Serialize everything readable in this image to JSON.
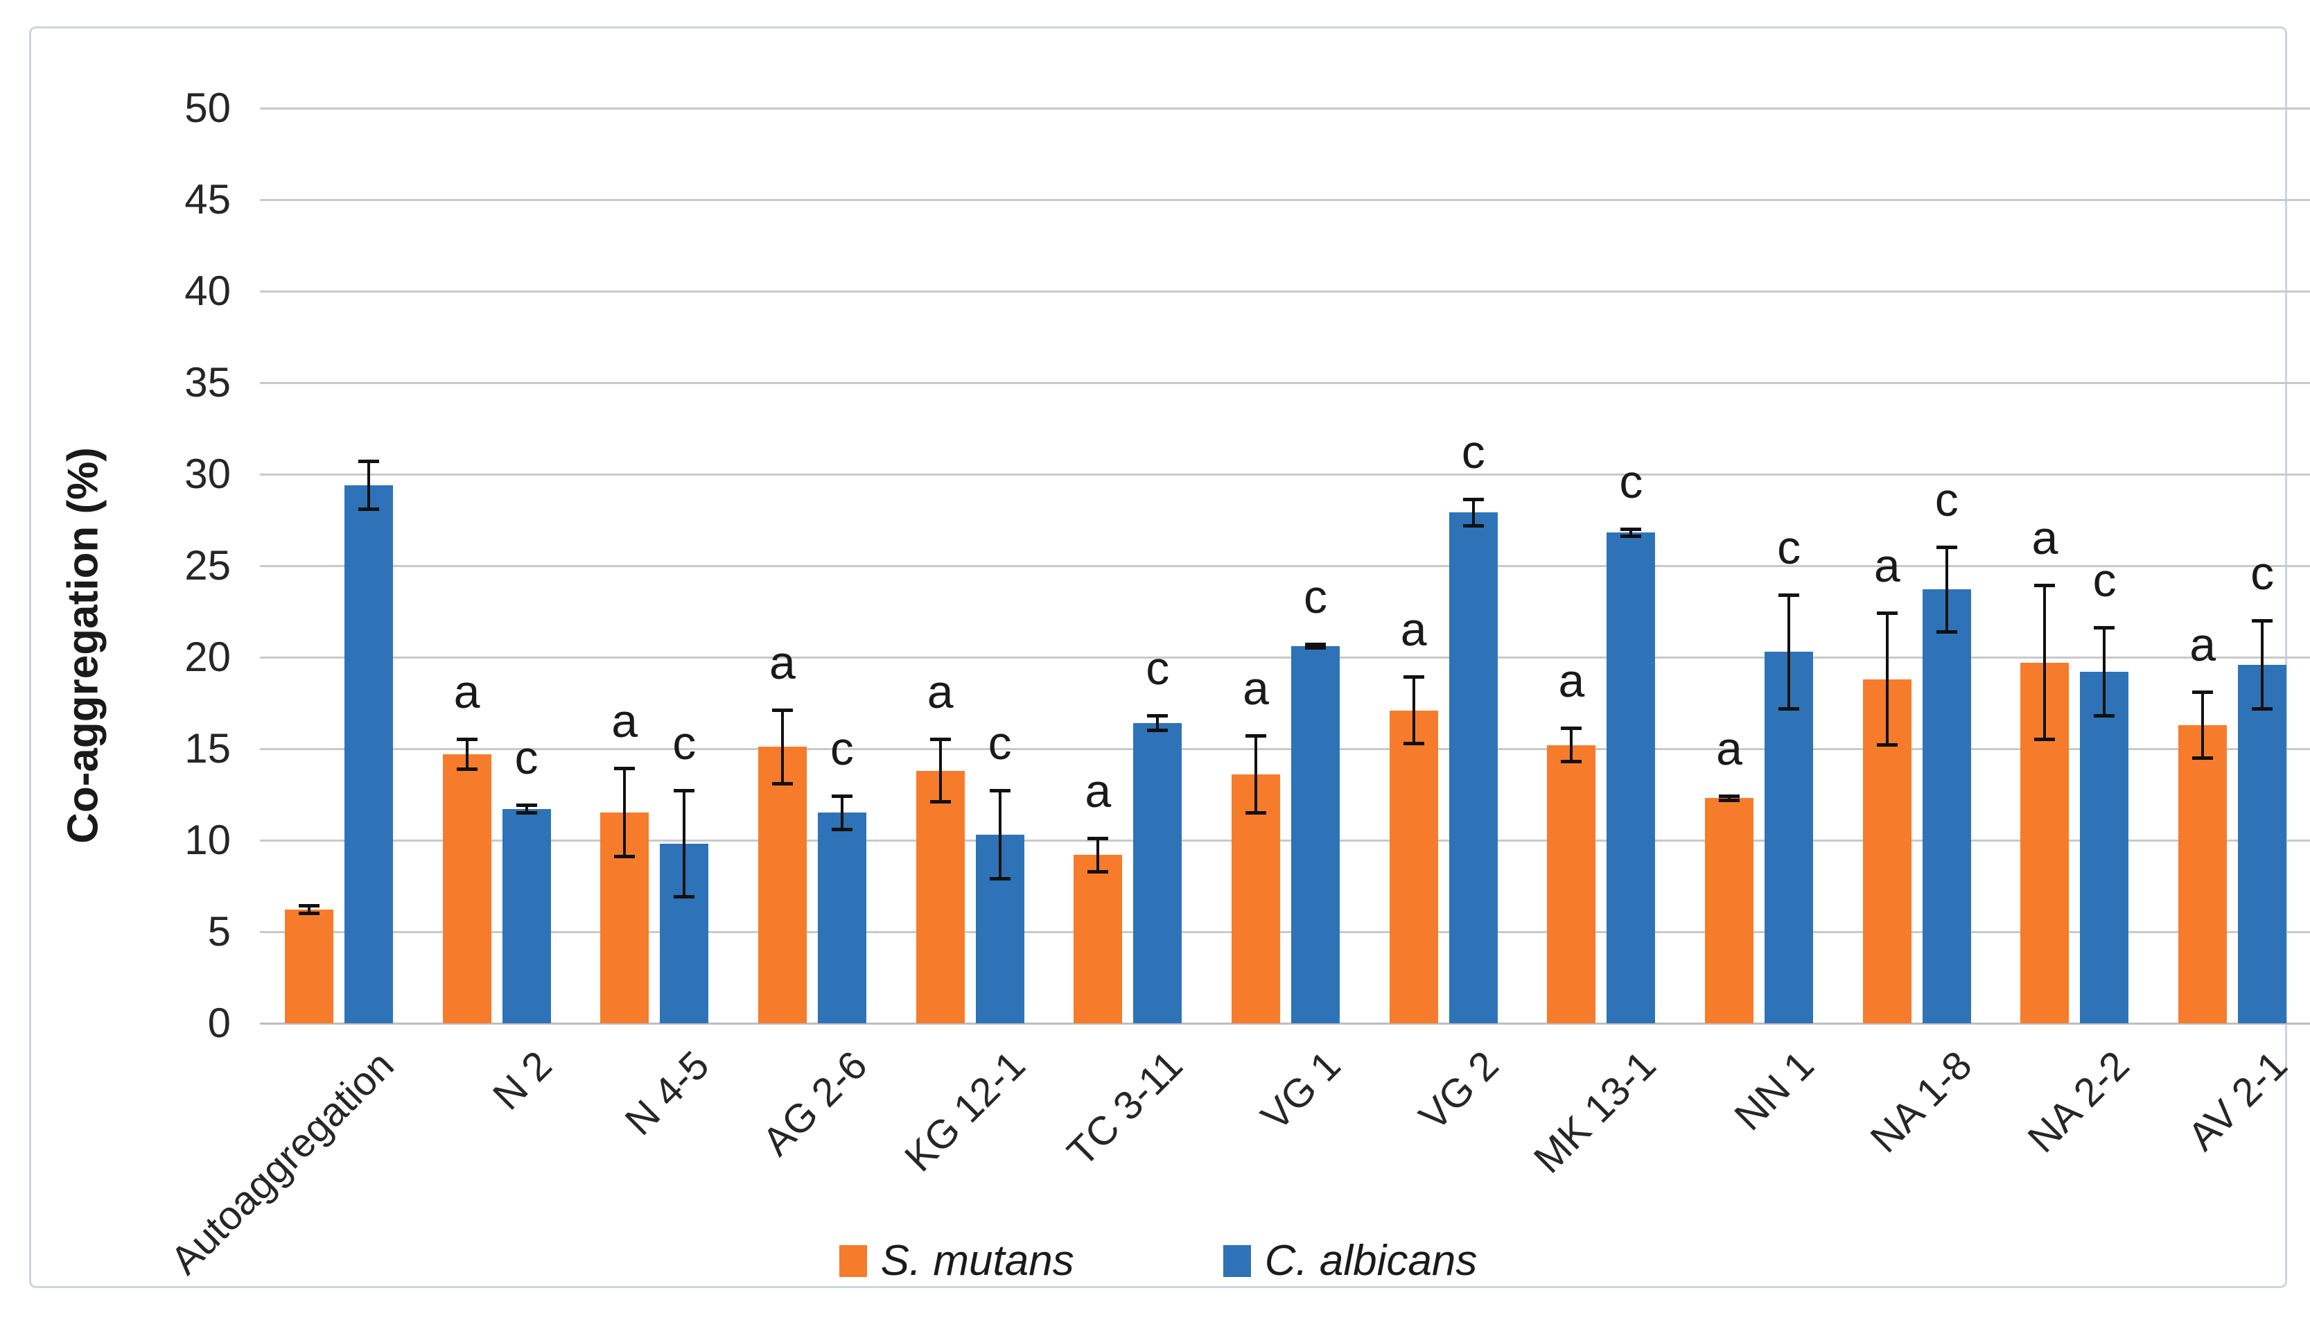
{
  "figure": {
    "background": "#ffffff",
    "frame_border_color": "#cdd4dd"
  },
  "chart_data": {
    "type": "bar",
    "title": "",
    "xlabel": "",
    "ylabel": "Co-aggregation (%)",
    "ylim": [
      0,
      50
    ],
    "yticks": [
      "0",
      "5",
      "10",
      "15",
      "20",
      "25",
      "30",
      "35",
      "40",
      "45",
      "50"
    ],
    "grid": true,
    "gridline_color": "#c9c9c9",
    "axis_line_color": "#bdbdbd",
    "legend_position": "bottom",
    "categories": [
      "Autoaggregation",
      "N 2",
      "N 4-5",
      "AG 2-6",
      "KG 12-1",
      "TC 3-11",
      "VG 1",
      "VG 2",
      "MK 13-1",
      "NN 1",
      "NA 1-8",
      "NA 2-2",
      "AV 2-1"
    ],
    "patterned_category_index": 0,
    "pattern_style": "white-dots",
    "series": [
      {
        "name": "S. mutans",
        "color": "#F67C2B",
        "values": [
          6.2,
          14.7,
          11.5,
          15.1,
          13.8,
          9.2,
          13.6,
          17.1,
          15.2,
          12.3,
          18.8,
          19.7,
          16.3
        ],
        "errors": [
          0.3,
          0.9,
          2.5,
          2.1,
          1.8,
          1.0,
          2.2,
          1.9,
          1.0,
          0.2,
          3.7,
          4.3,
          1.9
        ],
        "letters": [
          "",
          "a",
          "a",
          "a",
          "a",
          "a",
          "a",
          "a",
          "a",
          "a",
          "a",
          "a",
          "a"
        ]
      },
      {
        "name": "C. albicans",
        "color": "#2E73B8",
        "values": [
          29.4,
          11.7,
          9.8,
          11.5,
          10.3,
          16.4,
          20.6,
          27.9,
          26.8,
          20.3,
          23.7,
          19.2,
          19.6
        ],
        "errors": [
          1.4,
          0.3,
          3.0,
          1.0,
          2.5,
          0.5,
          0.2,
          0.8,
          0.3,
          3.2,
          2.4,
          2.5,
          2.5
        ],
        "letters": [
          "",
          "c",
          "c",
          "c",
          "c",
          "c",
          "c",
          "c",
          "c",
          "c",
          "c",
          "c",
          "c"
        ]
      }
    ]
  }
}
